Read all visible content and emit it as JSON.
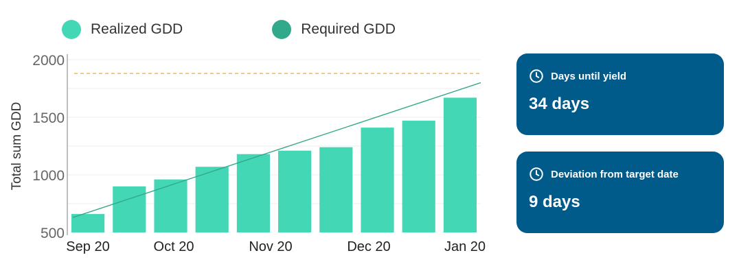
{
  "legend": {
    "realized_label": "Realized GDD",
    "required_label": "Required GDD"
  },
  "colors": {
    "realized": "#43d7b5",
    "required": "#33a98b",
    "target": "#f5a623",
    "card_bg": "#005b8a"
  },
  "chart_data": {
    "type": "bar",
    "ylabel": "Total sum GDD",
    "ylim": [
      500,
      2000
    ],
    "yticks": [
      500,
      1000,
      1500,
      2000
    ],
    "x_ticks": [
      "Sep 20",
      "Oct 20",
      "Nov 20",
      "Dec 20",
      "Jan 20"
    ],
    "series": [
      {
        "name": "Realized GDD",
        "type": "bar",
        "values": [
          660,
          900,
          960,
          1070,
          1180,
          1210,
          1240,
          1410,
          1470,
          1670
        ]
      },
      {
        "name": "Required GDD",
        "type": "line",
        "start": 630,
        "end": 1800
      }
    ],
    "target_line": 1880,
    "grid": true
  },
  "cards": [
    {
      "title": "Days until yield",
      "value": "34 days"
    },
    {
      "title": "Deviation from target date",
      "value": "9 days"
    }
  ]
}
